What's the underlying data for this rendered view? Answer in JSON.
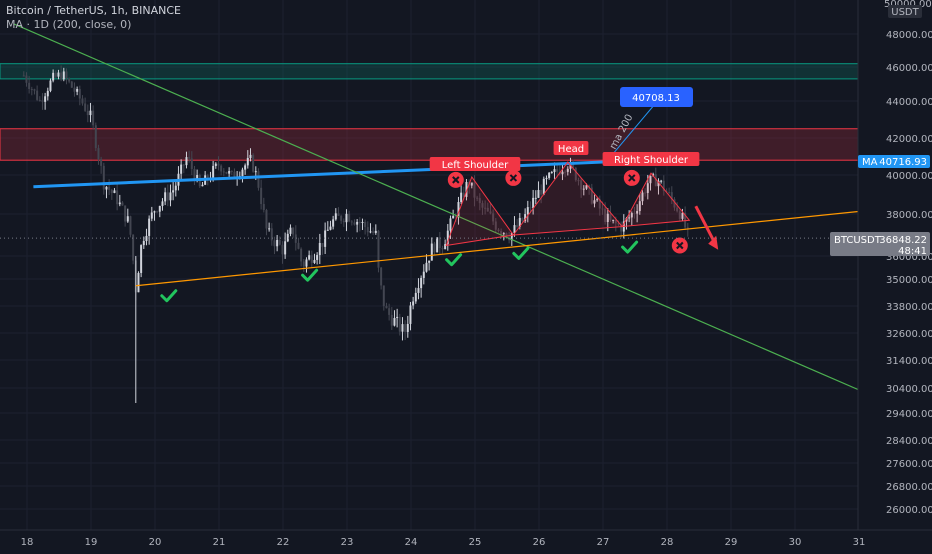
{
  "legend": {
    "symbol_line": "Bitcoin / TetherUS, 1h, BINANCE",
    "ma_line": "MA · 1D (200, close, 0)"
  },
  "price_axis": {
    "top_label": "50000.00",
    "currency": "USDT",
    "ticks": [
      48000,
      46000,
      44000,
      42000,
      40000,
      38000,
      36000,
      35000,
      33800,
      32600,
      31400,
      30400,
      29400,
      28400,
      27600,
      26800,
      26000
    ],
    "tick_labels": [
      "48000.00",
      "46000.00",
      "44000.00",
      "42000.00",
      "40000.00",
      "38000.00",
      "36000.00",
      "35000.00",
      "33800.00",
      "32600.00",
      "31400.00",
      "30400.00",
      "29400.00",
      "28400.00",
      "27600.00",
      "26800.00",
      "26000.00"
    ]
  },
  "time_axis": {
    "labels": [
      "18",
      "19",
      "20",
      "21",
      "22",
      "23",
      "24",
      "25",
      "26",
      "27",
      "28",
      "29",
      "30",
      "31"
    ]
  },
  "badges": {
    "ma_name": "MA",
    "ma_value": "40716.93",
    "ticker": "BTCUSDT",
    "price": "36848.22",
    "countdown": "48:41",
    "callout": "40708.13",
    "ma_label": "ma 200"
  },
  "pattern_labels": {
    "left_shoulder": "Left Shoulder",
    "head": "Head",
    "right_shoulder": "Right Shoulder"
  },
  "colors": {
    "background": "#131722",
    "up_candle": "#d1d4dc",
    "down_candle": "#434651",
    "resistance_zone": "#f23645",
    "support_zone": "#089981",
    "ma_line": "#2196f3",
    "trend_line": "#4caf50",
    "neckline": "#ff9800",
    "pattern_label": "#f23645",
    "check_mark": "#22c55e",
    "cross_mark": "#f23645"
  },
  "chart_data": {
    "type": "candlestick",
    "symbol": "BTCUSDT",
    "interval": "1h",
    "x_range": [
      "18",
      "31"
    ],
    "y_range": [
      25500,
      50000
    ],
    "grid": true,
    "last_price": 36848.22,
    "ma_200_daily": 40716.93,
    "ma_callout_value": 40708.13,
    "close_path": [
      {
        "day": 17.95,
        "price": 45500
      },
      {
        "day": 18.2,
        "price": 44000
      },
      {
        "day": 18.4,
        "price": 45300
      },
      {
        "day": 18.55,
        "price": 45600
      },
      {
        "day": 18.8,
        "price": 44300
      },
      {
        "day": 19.0,
        "price": 43100
      },
      {
        "day": 19.2,
        "price": 39600
      },
      {
        "day": 19.4,
        "price": 38800
      },
      {
        "day": 19.6,
        "price": 37500
      },
      {
        "day": 19.7,
        "price": 34600
      },
      {
        "day": 19.8,
        "price": 36800
      },
      {
        "day": 20.0,
        "price": 38300
      },
      {
        "day": 20.3,
        "price": 39300
      },
      {
        "day": 20.5,
        "price": 41000
      },
      {
        "day": 20.7,
        "price": 39300
      },
      {
        "day": 21.0,
        "price": 40600
      },
      {
        "day": 21.2,
        "price": 39900
      },
      {
        "day": 21.5,
        "price": 40800
      },
      {
        "day": 21.6,
        "price": 39800
      },
      {
        "day": 21.75,
        "price": 37100
      },
      {
        "day": 22.0,
        "price": 36300
      },
      {
        "day": 22.15,
        "price": 37300
      },
      {
        "day": 22.3,
        "price": 35600
      },
      {
        "day": 22.5,
        "price": 36200
      },
      {
        "day": 22.65,
        "price": 36800
      },
      {
        "day": 22.75,
        "price": 37600
      },
      {
        "day": 23.0,
        "price": 38000
      },
      {
        "day": 23.2,
        "price": 37600
      },
      {
        "day": 23.45,
        "price": 37000
      },
      {
        "day": 23.5,
        "price": 35000
      },
      {
        "day": 23.6,
        "price": 33600
      },
      {
        "day": 23.75,
        "price": 33100
      },
      {
        "day": 23.9,
        "price": 32600
      },
      {
        "day": 24.05,
        "price": 34500
      },
      {
        "day": 24.2,
        "price": 35500
      },
      {
        "day": 24.35,
        "price": 36500
      },
      {
        "day": 24.5,
        "price": 36600
      },
      {
        "day": 24.7,
        "price": 38100
      },
      {
        "day": 24.9,
        "price": 39700
      },
      {
        "day": 25.05,
        "price": 38500
      },
      {
        "day": 25.2,
        "price": 38000
      },
      {
        "day": 25.35,
        "price": 37400
      },
      {
        "day": 25.55,
        "price": 37000
      },
      {
        "day": 25.75,
        "price": 37700
      },
      {
        "day": 25.95,
        "price": 38900
      },
      {
        "day": 26.15,
        "price": 39800
      },
      {
        "day": 26.35,
        "price": 40400
      },
      {
        "day": 26.45,
        "price": 40600
      },
      {
        "day": 26.7,
        "price": 39400
      },
      {
        "day": 26.9,
        "price": 38500
      },
      {
        "day": 27.1,
        "price": 37600
      },
      {
        "day": 27.3,
        "price": 37400
      },
      {
        "day": 27.5,
        "price": 38200
      },
      {
        "day": 27.7,
        "price": 39600
      },
      {
        "day": 27.85,
        "price": 39800
      },
      {
        "day": 28.0,
        "price": 39100
      },
      {
        "day": 28.2,
        "price": 38100
      },
      {
        "day": 28.35,
        "price": 36800
      }
    ],
    "zones": [
      {
        "name": "support zone",
        "from": 45300,
        "to": 46200
      },
      {
        "name": "resistance zone",
        "from": 40800,
        "to": 42500
      }
    ],
    "lines": [
      {
        "name": "MA 200 (1D)",
        "from": {
          "day": 18.1,
          "price": 39400
        },
        "to": {
          "day": 27.05,
          "price": 40708.13
        }
      },
      {
        "name": "descending trend line",
        "from": {
          "day": 17.8,
          "price": 48600
        },
        "to": {
          "day": 31.2,
          "price": 30100
        }
      },
      {
        "name": "neckline",
        "from": {
          "day": 19.7,
          "price": 34700
        },
        "to": {
          "day": 31.2,
          "price": 38200
        }
      }
    ],
    "head_and_shoulders": {
      "left_shoulder": {
        "day": 24.95,
        "price": 39900
      },
      "head": {
        "day": 26.45,
        "price": 40700
      },
      "right_shoulder": {
        "day": 27.75,
        "price": 40100
      },
      "neckline_touches": [
        {
          "day": 24.55,
          "price": 36500
        },
        {
          "day": 25.6,
          "price": 37000
        },
        {
          "day": 27.3,
          "price": 37400
        }
      ]
    },
    "support_checks": [
      {
        "day": 20.2,
        "price": 34700
      },
      {
        "day": 22.4,
        "price": 35600
      },
      {
        "day": 24.65,
        "price": 36300
      },
      {
        "day": 25.7,
        "price": 36600
      },
      {
        "day": 27.4,
        "price": 36900
      }
    ],
    "rejection_crosses": [
      {
        "day": 24.7,
        "price": 39750
      },
      {
        "day": 25.6,
        "price": 39850
      },
      {
        "day": 27.45,
        "price": 39850
      },
      {
        "day": 28.2,
        "price": 36500
      }
    ],
    "projection_arrow": {
      "from": {
        "day": 28.45,
        "price": 38400
      },
      "to": {
        "day": 28.8,
        "price": 36300
      }
    }
  }
}
